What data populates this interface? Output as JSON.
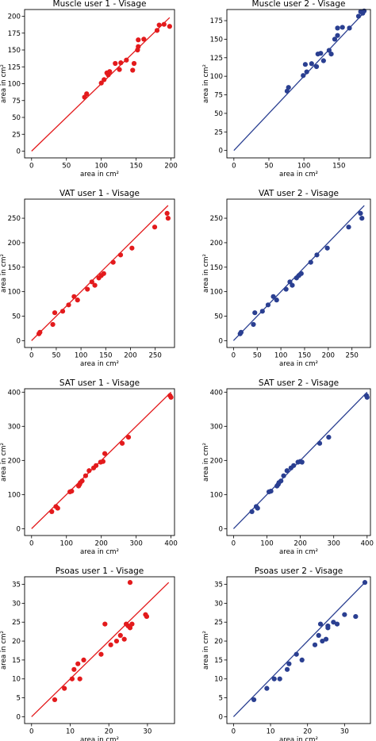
{
  "colors": {
    "user1": "#e31a1c",
    "user2": "#2a3f91"
  },
  "chart_data": [
    {
      "type": "scatter",
      "title": "Muscle user 1 - Visage",
      "xlabel": "area in cm²",
      "ylabel": "area in cm²",
      "xlim": [
        -10,
        205
      ],
      "ylim": [
        -10,
        210
      ],
      "xticks": [
        "0",
        "50",
        "100",
        "150",
        "200"
      ],
      "yticks": [
        "0",
        "25",
        "50",
        "75",
        "100",
        "125",
        "150",
        "175",
        "200"
      ],
      "xtick_values": [
        0,
        50,
        100,
        150,
        200
      ],
      "ytick_values": [
        0,
        25,
        50,
        75,
        100,
        125,
        150,
        175,
        200
      ],
      "line": [
        [
          0,
          0
        ],
        [
          198,
          198
        ]
      ],
      "color": "user1",
      "points": [
        [
          76,
          80
        ],
        [
          79,
          85
        ],
        [
          100,
          101
        ],
        [
          104,
          106
        ],
        [
          108,
          116
        ],
        [
          110,
          113
        ],
        [
          112,
          118
        ],
        [
          120,
          130
        ],
        [
          126,
          121
        ],
        [
          128,
          131
        ],
        [
          136,
          135
        ],
        [
          145,
          120
        ],
        [
          147,
          130
        ],
        [
          152,
          150
        ],
        [
          153,
          155
        ],
        [
          153,
          165
        ],
        [
          161,
          166
        ],
        [
          180,
          179
        ],
        [
          183,
          187
        ],
        [
          190,
          188
        ],
        [
          198,
          185
        ]
      ]
    },
    {
      "type": "scatter",
      "title": "Muscle user 2 - Visage",
      "xlabel": "area in cm²",
      "ylabel": "area in cm²",
      "xlim": [
        -10,
        195
      ],
      "ylim": [
        -10,
        190
      ],
      "xticks": [
        "0",
        "50",
        "100",
        "150"
      ],
      "yticks": [
        "0",
        "25",
        "50",
        "75",
        "100",
        "125",
        "150",
        "175"
      ],
      "xtick_values": [
        0,
        50,
        100,
        150
      ],
      "ytick_values": [
        0,
        25,
        50,
        75,
        100,
        125,
        150,
        175
      ],
      "line": [
        [
          0,
          0
        ],
        [
          186,
          186
        ]
      ],
      "color": "user2",
      "points": [
        [
          76,
          80
        ],
        [
          78,
          85
        ],
        [
          99,
          101
        ],
        [
          102,
          116
        ],
        [
          104,
          106
        ],
        [
          111,
          117
        ],
        [
          118,
          113
        ],
        [
          120,
          130
        ],
        [
          124,
          131
        ],
        [
          128,
          121
        ],
        [
          136,
          135
        ],
        [
          139,
          130
        ],
        [
          144,
          150
        ],
        [
          148,
          155
        ],
        [
          148,
          165
        ],
        [
          155,
          166
        ],
        [
          165,
          165
        ],
        [
          178,
          181
        ],
        [
          181,
          187
        ],
        [
          184,
          185
        ],
        [
          186,
          188
        ]
      ]
    },
    {
      "type": "scatter",
      "title": "VAT user 1 - Visage",
      "xlabel": "area in cm²",
      "ylabel": "area in cm²",
      "xlim": [
        -14,
        289
      ],
      "ylim": [
        -14,
        289
      ],
      "xticks": [
        "0",
        "50",
        "100",
        "150",
        "200",
        "250"
      ],
      "yticks": [
        "0",
        "50",
        "100",
        "150",
        "200",
        "250"
      ],
      "xtick_values": [
        0,
        50,
        100,
        150,
        200,
        250
      ],
      "ytick_values": [
        0,
        50,
        100,
        150,
        200,
        250
      ],
      "line": [
        [
          0,
          0
        ],
        [
          276,
          276
        ]
      ],
      "color": "user1",
      "points": [
        [
          15,
          14
        ],
        [
          17,
          17
        ],
        [
          43,
          33
        ],
        [
          47,
          57
        ],
        [
          63,
          60
        ],
        [
          75,
          73
        ],
        [
          86,
          90
        ],
        [
          93,
          83
        ],
        [
          113,
          105
        ],
        [
          122,
          120
        ],
        [
          128,
          113
        ],
        [
          136,
          128
        ],
        [
          141,
          133
        ],
        [
          146,
          137
        ],
        [
          165,
          160
        ],
        [
          180,
          175
        ],
        [
          203,
          189
        ],
        [
          249,
          232
        ],
        [
          274,
          260
        ],
        [
          276,
          250
        ]
      ]
    },
    {
      "type": "scatter",
      "title": "VAT user 2 - Visage",
      "xlabel": "area in cm²",
      "ylabel": "area in cm²",
      "xlim": [
        -14,
        289
      ],
      "ylim": [
        -14,
        289
      ],
      "xticks": [
        "0",
        "50",
        "100",
        "150",
        "200",
        "250"
      ],
      "yticks": [
        "0",
        "50",
        "100",
        "150",
        "200",
        "250"
      ],
      "xtick_values": [
        0,
        50,
        100,
        150,
        200,
        250
      ],
      "ytick_values": [
        0,
        50,
        100,
        150,
        200,
        250
      ],
      "line": [
        [
          0,
          0
        ],
        [
          276,
          276
        ]
      ],
      "color": "user2",
      "points": [
        [
          14,
          14
        ],
        [
          16,
          17
        ],
        [
          42,
          33
        ],
        [
          45,
          57
        ],
        [
          61,
          60
        ],
        [
          73,
          73
        ],
        [
          84,
          90
        ],
        [
          91,
          83
        ],
        [
          111,
          105
        ],
        [
          119,
          120
        ],
        [
          124,
          113
        ],
        [
          133,
          128
        ],
        [
          138,
          133
        ],
        [
          143,
          137
        ],
        [
          163,
          160
        ],
        [
          176,
          175
        ],
        [
          198,
          189
        ],
        [
          243,
          232
        ],
        [
          268,
          260
        ],
        [
          271,
          250
        ]
      ]
    },
    {
      "type": "scatter",
      "title": "SAT user 1 - Visage",
      "xlabel": "area in cm²",
      "ylabel": "area in cm²",
      "xlim": [
        -20,
        410
      ],
      "ylim": [
        -20,
        410
      ],
      "xticks": [
        "0",
        "100",
        "200",
        "300",
        "400"
      ],
      "yticks": [
        "0",
        "100",
        "200",
        "300",
        "400"
      ],
      "xtick_values": [
        0,
        100,
        200,
        300,
        400
      ],
      "ytick_values": [
        0,
        100,
        200,
        300,
        400
      ],
      "line": [
        [
          0,
          0
        ],
        [
          400,
          400
        ]
      ],
      "color": "user1",
      "points": [
        [
          58,
          50
        ],
        [
          70,
          65
        ],
        [
          75,
          60
        ],
        [
          110,
          108
        ],
        [
          115,
          110
        ],
        [
          135,
          125
        ],
        [
          138,
          130
        ],
        [
          140,
          135
        ],
        [
          145,
          140
        ],
        [
          155,
          155
        ],
        [
          165,
          170
        ],
        [
          178,
          178
        ],
        [
          185,
          185
        ],
        [
          198,
          195
        ],
        [
          205,
          197
        ],
        [
          210,
          220
        ],
        [
          260,
          250
        ],
        [
          278,
          268
        ],
        [
          397,
          390
        ],
        [
          400,
          385
        ]
      ]
    },
    {
      "type": "scatter",
      "title": "SAT user 2 - Visage",
      "xlabel": "area in cm²",
      "ylabel": "area in cm²",
      "xlim": [
        -20,
        410
      ],
      "ylim": [
        -20,
        410
      ],
      "xticks": [
        "0",
        "100",
        "200",
        "300",
        "400"
      ],
      "yticks": [
        "0",
        "100",
        "200",
        "300",
        "400"
      ],
      "xtick_values": [
        0,
        100,
        200,
        300,
        400
      ],
      "ytick_values": [
        0,
        100,
        200,
        300,
        400
      ],
      "line": [
        [
          0,
          0
        ],
        [
          400,
          400
        ]
      ],
      "color": "user2",
      "points": [
        [
          55,
          50
        ],
        [
          68,
          65
        ],
        [
          72,
          60
        ],
        [
          106,
          108
        ],
        [
          112,
          110
        ],
        [
          130,
          125
        ],
        [
          134,
          130
        ],
        [
          136,
          135
        ],
        [
          142,
          140
        ],
        [
          150,
          155
        ],
        [
          160,
          170
        ],
        [
          172,
          178
        ],
        [
          180,
          185
        ],
        [
          193,
          195
        ],
        [
          200,
          197
        ],
        [
          205,
          195
        ],
        [
          258,
          250
        ],
        [
          285,
          268
        ],
        [
          398,
          390
        ],
        [
          400,
          385
        ]
      ]
    },
    {
      "type": "scatter",
      "title": "Psoas user 1 - Visage",
      "xlabel": "area in cm²",
      "ylabel": "area in cm²",
      "xlim": [
        -1.8,
        37
      ],
      "ylim": [
        -1.8,
        37
      ],
      "xticks": [
        "0",
        "10",
        "20",
        "30"
      ],
      "yticks": [
        "0",
        "5",
        "10",
        "15",
        "20",
        "25",
        "30",
        "35"
      ],
      "xtick_values": [
        0,
        10,
        20,
        30
      ],
      "ytick_values": [
        0,
        5,
        10,
        15,
        20,
        25,
        30,
        35
      ],
      "line": [
        [
          0,
          0
        ],
        [
          35.5,
          35.5
        ]
      ],
      "color": "user1",
      "points": [
        [
          6,
          4.5
        ],
        [
          8.5,
          7.5
        ],
        [
          10.5,
          10
        ],
        [
          11,
          12.5
        ],
        [
          12,
          14
        ],
        [
          12.5,
          10
        ],
        [
          13.5,
          15
        ],
        [
          18,
          16.5
        ],
        [
          19,
          24.5
        ],
        [
          20.5,
          19
        ],
        [
          22,
          20
        ],
        [
          23,
          21.5
        ],
        [
          24,
          20.5
        ],
        [
          24.5,
          24.5
        ],
        [
          25,
          24
        ],
        [
          25.5,
          23.5
        ],
        [
          25.5,
          35.5
        ],
        [
          26,
          24.5
        ],
        [
          29.5,
          27
        ],
        [
          29.8,
          26.5
        ]
      ]
    },
    {
      "type": "scatter",
      "title": "Psoas user 2 - Visage",
      "xlabel": "area in cm²",
      "ylabel": "area in cm²",
      "xlim": [
        -1.8,
        37
      ],
      "ylim": [
        -1.8,
        37
      ],
      "xticks": [
        "0",
        "10",
        "20",
        "30"
      ],
      "yticks": [
        "0",
        "5",
        "10",
        "15",
        "20",
        "25",
        "30",
        "35"
      ],
      "xtick_values": [
        0,
        10,
        20,
        30
      ],
      "ytick_values": [
        0,
        5,
        10,
        15,
        20,
        25,
        30,
        35
      ],
      "line": [
        [
          0,
          0
        ],
        [
          35.5,
          35.5
        ]
      ],
      "color": "user2",
      "points": [
        [
          5.5,
          4.5
        ],
        [
          9,
          7.5
        ],
        [
          11,
          10
        ],
        [
          12.5,
          10
        ],
        [
          14.5,
          12.5
        ],
        [
          15,
          14
        ],
        [
          17,
          16.5
        ],
        [
          18.5,
          15
        ],
        [
          22,
          19
        ],
        [
          23,
          21.5
        ],
        [
          23.5,
          24.5
        ],
        [
          24,
          20
        ],
        [
          25,
          20.5
        ],
        [
          25.5,
          24
        ],
        [
          25.5,
          23.5
        ],
        [
          27,
          25
        ],
        [
          28,
          24.5
        ],
        [
          30,
          27
        ],
        [
          33,
          26.5
        ],
        [
          35.5,
          35.5
        ]
      ]
    }
  ]
}
